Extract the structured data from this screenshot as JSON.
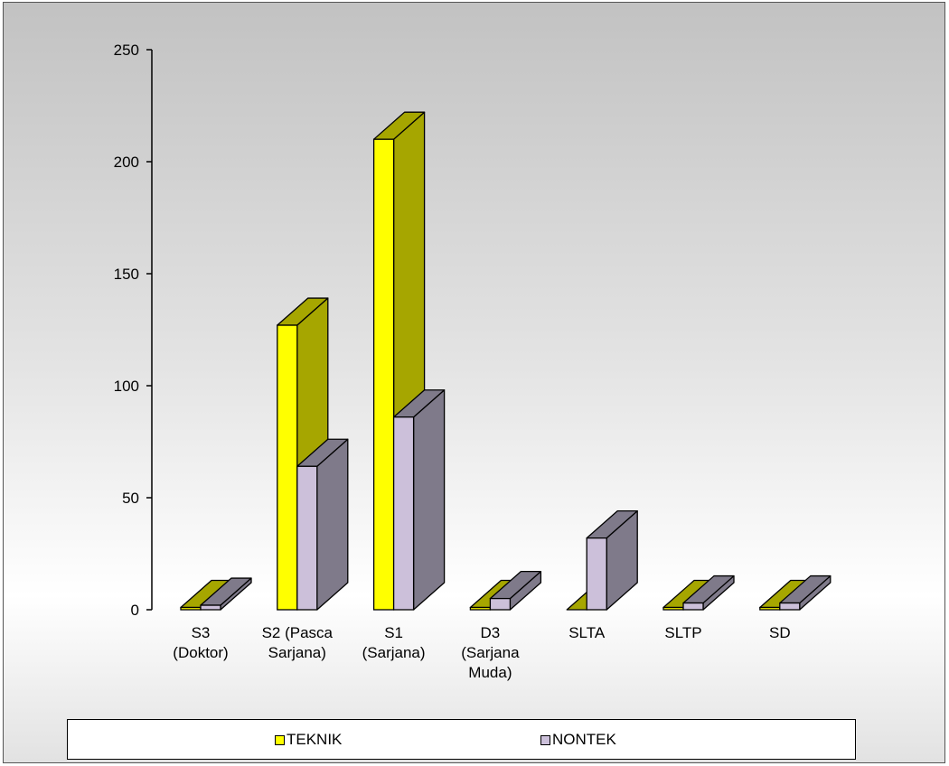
{
  "chart_data": {
    "type": "bar",
    "style": "3d-clustered-column",
    "categories": [
      [
        "S3",
        "(Doktor)"
      ],
      [
        "S2 (Pasca",
        "Sarjana)"
      ],
      [
        "S1",
        "(Sarjana)"
      ],
      [
        "D3",
        "(Sarjana",
        "Muda)"
      ],
      [
        "SLTA"
      ],
      [
        "SLTP"
      ],
      [
        "SD"
      ]
    ],
    "series": [
      {
        "name": "TEKNIK",
        "values": [
          1,
          127,
          210,
          1,
          0,
          1,
          1
        ],
        "color": "#ffff00",
        "side_color": "#a6a600"
      },
      {
        "name": "NONTEK",
        "values": [
          2,
          64,
          86,
          5,
          32,
          3,
          3
        ],
        "color": "#ccc0da",
        "side_color": "#7f7a8a"
      }
    ],
    "ylim": [
      0,
      250
    ],
    "yticks": [
      "0",
      "50",
      "100",
      "150",
      "200",
      "250"
    ],
    "grid": false,
    "legend_position": "bottom",
    "background": "gray-gradient"
  }
}
